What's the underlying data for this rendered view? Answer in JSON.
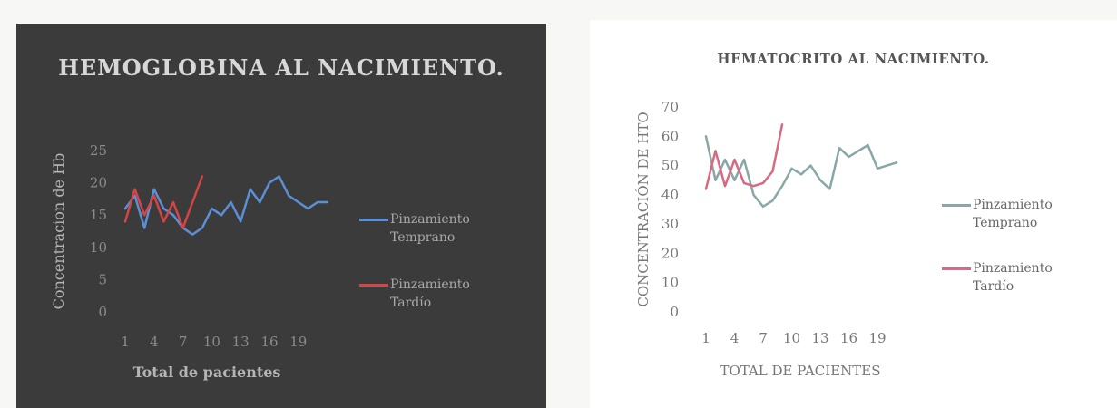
{
  "chart_data": [
    {
      "type": "line",
      "title": "HEMOGLOBINA AL NACIMIENTO.",
      "xlabel": "Total de pacientes",
      "ylabel": "Concentracion de Hb",
      "ylim": [
        0,
        25
      ],
      "yticks": [
        "0",
        "5",
        "10",
        "15",
        "20",
        "25"
      ],
      "xticks": [
        "1",
        "4",
        "7",
        "10",
        "13",
        "16",
        "19"
      ],
      "grid": false,
      "legend": "right",
      "series": [
        {
          "name": "Pinzamiento Temprano",
          "color": "#5b8fd6",
          "x": [
            1,
            2,
            3,
            4,
            5,
            6,
            7,
            8,
            9,
            10,
            11,
            12,
            13,
            14,
            15,
            16,
            17,
            18,
            19,
            20,
            21,
            22
          ],
          "values": [
            16,
            18,
            13,
            19,
            16,
            15,
            13,
            12,
            13,
            16,
            15,
            17,
            14,
            19,
            17,
            20,
            21,
            18,
            17,
            16,
            17,
            17
          ]
        },
        {
          "name": "Pinzamiento Tardío",
          "color": "#d64545",
          "x": [
            1,
            2,
            3,
            4,
            5,
            6,
            7,
            8,
            9
          ],
          "values": [
            14,
            19,
            15,
            18,
            14,
            17,
            13,
            17,
            21
          ]
        }
      ]
    },
    {
      "type": "line",
      "title": "HEMATOCRITO AL NACIMIENTO.",
      "xlabel": "TOTAL DE PACIENTES",
      "ylabel": "CONCENTRACIÓN DE HTO",
      "ylim": [
        0,
        70
      ],
      "yticks": [
        "0",
        "10",
        "20",
        "30",
        "40",
        "50",
        "60",
        "70"
      ],
      "xticks": [
        "1",
        "4",
        "7",
        "10",
        "13",
        "16",
        "19"
      ],
      "grid": false,
      "legend": "right",
      "series": [
        {
          "name": "Pinzamiento Temprano",
          "color": "#8aa7a7",
          "x": [
            1,
            2,
            3,
            4,
            5,
            6,
            7,
            8,
            9,
            10,
            11,
            12,
            13,
            14,
            15,
            16,
            17,
            18,
            19,
            20,
            21
          ],
          "values": [
            60,
            45,
            52,
            45,
            52,
            40,
            36,
            38,
            43,
            49,
            47,
            50,
            45,
            42,
            56,
            53,
            55,
            57,
            49,
            50,
            51
          ]
        },
        {
          "name": "Pinzamiento Tardío",
          "color": "#d66a82",
          "x": [
            1,
            2,
            3,
            4,
            5,
            6,
            7,
            8,
            9
          ],
          "values": [
            42,
            55,
            43,
            52,
            44,
            43,
            44,
            48,
            64
          ]
        }
      ]
    }
  ]
}
